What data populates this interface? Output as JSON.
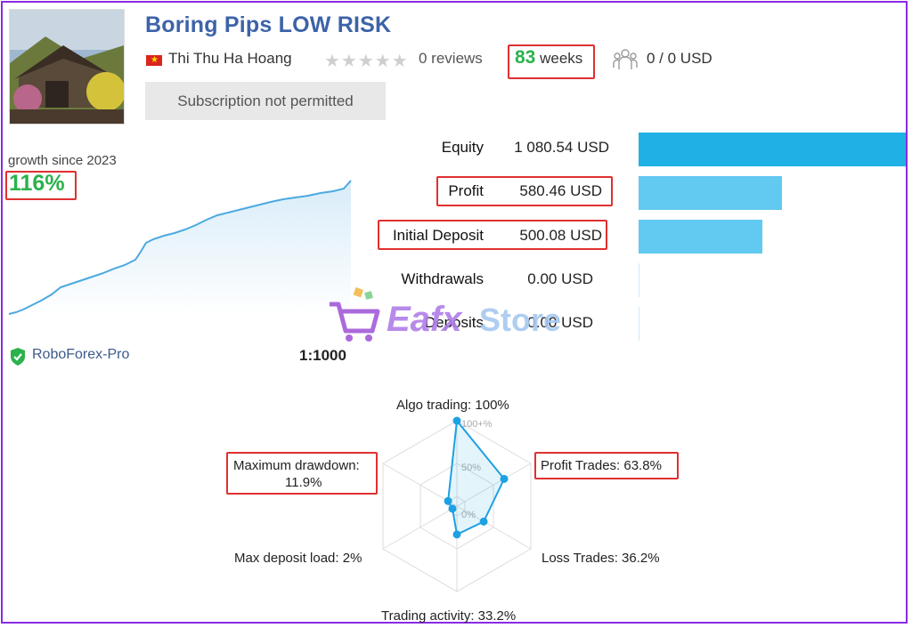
{
  "header": {
    "title": "Boring Pips LOW RISK",
    "author": "Thi Thu Ha Hoang",
    "reviews": "0 reviews",
    "weeks_number": "83",
    "weeks_label": "weeks",
    "subscribers": "0 / 0 USD",
    "subscribe_button": "Subscription not permitted",
    "rating_stars": 0
  },
  "growth": {
    "label": "growth since 2023",
    "value": "116%"
  },
  "stats": [
    {
      "label": "Equity",
      "value": "1 080.54 USD",
      "amount": 1080.54
    },
    {
      "label": "Profit",
      "value": "580.46 USD",
      "amount": 580.46
    },
    {
      "label": "Initial Deposit",
      "value": "500.08 USD",
      "amount": 500.08
    },
    {
      "label": "Withdrawals",
      "value": "0.00 USD",
      "amount": 0.0
    },
    {
      "label": "Deposits",
      "value": "0.00 USD",
      "amount": 0.0
    }
  ],
  "broker": {
    "name": "RoboForex-Pro",
    "leverage": "1:1000"
  },
  "radar": {
    "labels": {
      "algo": "Algo trading: 100%",
      "profit_trades": "Profit Trades: 63.8%",
      "loss_trades": "Loss Trades: 36.2%",
      "activity": "Trading activity: 33.2%",
      "deposit_load": "Max deposit load: 2%",
      "drawdown_line1": "Maximum drawdown:",
      "drawdown_line2": "11.9%"
    },
    "scale": {
      "top": "100+%",
      "mid": "50%",
      "zero": "0%"
    },
    "values": [
      100,
      63.8,
      36.2,
      33.2,
      2,
      11.9
    ]
  },
  "watermark": {
    "brand1": "Eafx",
    "brand2": "Store"
  },
  "colors": {
    "accent": "#3d63a8",
    "green": "#2bb24c",
    "bar_equity": "#1fb1e6",
    "bar_other": "#62c9f0",
    "highlight": "#e03030",
    "line": "#4ba9e0"
  }
}
